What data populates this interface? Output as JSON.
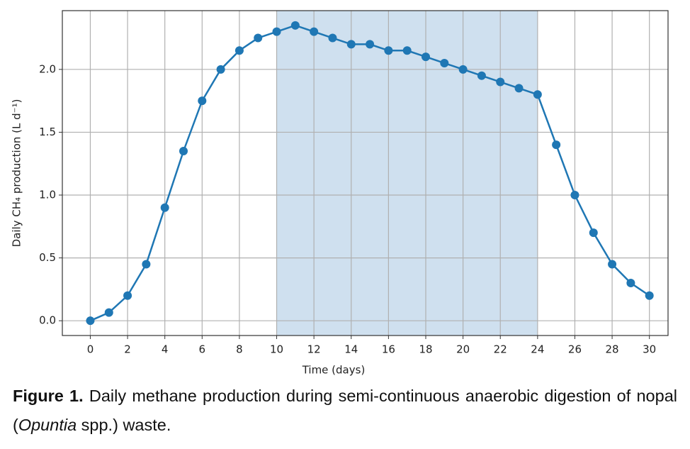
{
  "chart_data": {
    "type": "line",
    "ylabel": "Daily CH₄ production (L d⁻¹)",
    "xlabel": "Time (days)",
    "x": [
      0,
      1,
      2,
      3,
      4,
      5,
      6,
      7,
      8,
      9,
      10,
      11,
      12,
      13,
      14,
      15,
      16,
      17,
      18,
      19,
      20,
      21,
      22,
      23,
      24,
      25,
      26,
      27,
      28,
      29,
      30
    ],
    "values": [
      0,
      0.065,
      0.2,
      0.45,
      0.9,
      1.35,
      1.75,
      2.0,
      2.15,
      2.25,
      2.3,
      2.35,
      2.3,
      2.25,
      2.2,
      2.2,
      2.15,
      2.15,
      2.1,
      2.05,
      2.0,
      1.95,
      1.9,
      1.85,
      1.8,
      1.4,
      1.0,
      0.7,
      0.45,
      0.3,
      0.2
    ],
    "color": "#1f77b4",
    "shade": [
      10,
      24
    ],
    "shade_color": "#cfe0ef",
    "xlim": [
      -1.5,
      31
    ],
    "ylim": [
      -0.1175,
      2.4675
    ],
    "xticks": [
      0,
      2,
      4,
      6,
      8,
      10,
      12,
      14,
      16,
      18,
      20,
      22,
      24,
      26,
      28,
      30
    ],
    "yticks": [
      {
        "value": 0,
        "label": "0.0"
      },
      0.5,
      {
        "value": 1,
        "label": "1.0"
      },
      1.5,
      {
        "value": 2,
        "label": "2.0"
      }
    ],
    "grid": true
  },
  "caption": {
    "label": "Figure 1.",
    "text_before": "Daily methane production during semi-continuous anaerobic digestion of nopal (",
    "italic": "Opuntia",
    "text_after": "spp.) waste."
  }
}
